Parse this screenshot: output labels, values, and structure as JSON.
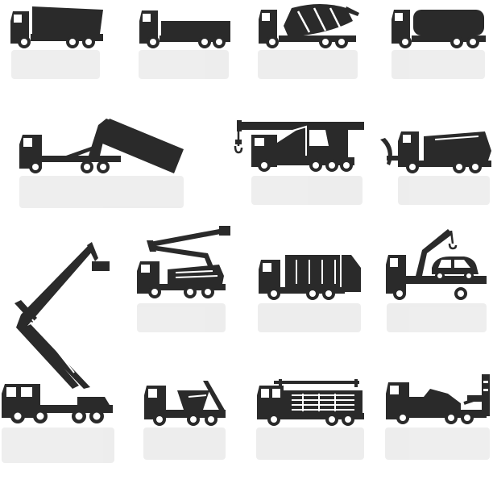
{
  "ink_color": "#2a2a2a",
  "background_color": "#ffffff",
  "icons": [
    {
      "name": "dump-truck-icon"
    },
    {
      "name": "flatbed-truck-icon"
    },
    {
      "name": "cement-mixer-truck-icon"
    },
    {
      "name": "tanker-truck-icon"
    },
    {
      "name": "container-dump-truck-icon"
    },
    {
      "name": "mobile-crane-truck-icon"
    },
    {
      "name": "snow-plow-truck-icon"
    },
    {
      "name": "tall-aerial-lift-truck-icon"
    },
    {
      "name": "bucket-lift-truck-icon"
    },
    {
      "name": "garbage-truck-icon"
    },
    {
      "name": "tow-truck-with-car-icon"
    },
    {
      "name": "skip-loader-truck-icon"
    },
    {
      "name": "fire-engine-icon"
    },
    {
      "name": "wrecker-tow-truck-icon"
    }
  ]
}
